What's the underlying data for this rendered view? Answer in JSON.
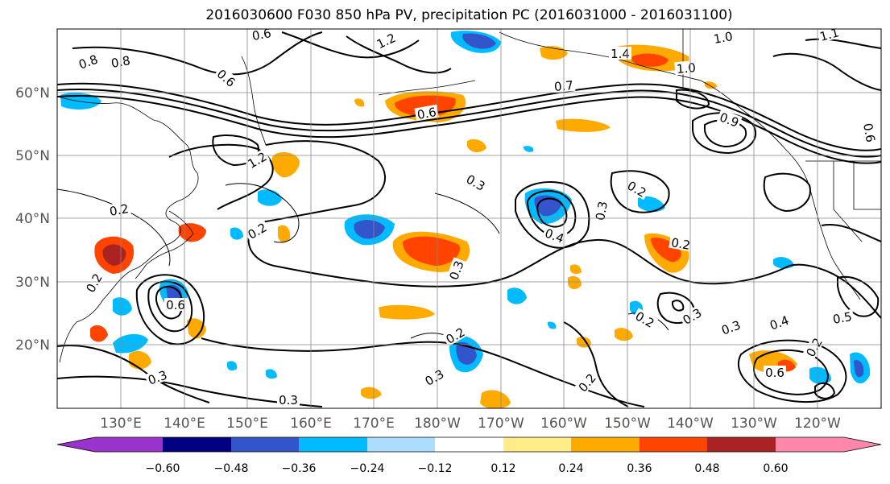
{
  "title": "2016030600 F030 850 hPa PV, precipitation PC (2016031000 - 2016031100)",
  "lat_labels": [
    "60°N",
    "50°N",
    "40°N",
    "30°N",
    "20°N"
  ],
  "lon_labels": [
    "130°E",
    "140°E",
    "150°E",
    "160°E",
    "170°E",
    "180°W",
    "170°W",
    "160°W",
    "150°W",
    "140°W",
    "130°W",
    "120°W"
  ],
  "colorbar": {
    "colors": [
      "#9933cc",
      "#000080",
      "#3355cc",
      "#00bbff",
      "#aaddff",
      "#ffffff",
      "#ffee88",
      "#ffaa00",
      "#ff4400",
      "#aa2222",
      "#ff88aa"
    ],
    "tick_labels": [
      "−0.60",
      "−0.48",
      "−0.36",
      "−0.24",
      "−0.12",
      "0.12",
      "0.24",
      "0.36",
      "0.48",
      "0.60"
    ]
  },
  "contour_labels": [
    "0.8",
    "0.6",
    "1.2",
    "1.4",
    "1.0",
    "1.1",
    "0.8",
    "0.6",
    "0.7",
    "1.0",
    "0.9",
    "0.6",
    "0.3",
    "1.2",
    "0.6",
    "0.2",
    "0.2",
    "0.2",
    "0.3",
    "0.3",
    "0.6",
    "0.4",
    "0.3",
    "0.2",
    "0.2",
    "0.2",
    "0.3",
    "0.3",
    "0.2",
    "0.2",
    "0.3",
    "0.3",
    "0.4",
    "0.5",
    "0.6",
    "0.2"
  ]
}
